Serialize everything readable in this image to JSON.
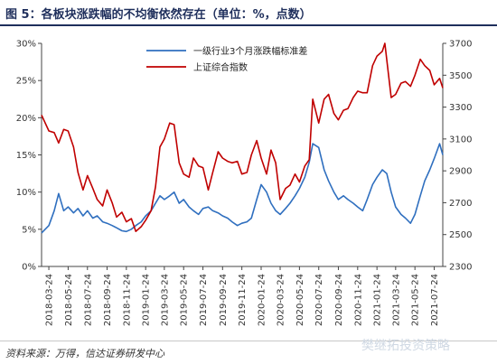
{
  "header": {
    "title": "图 5：各板块涨跌幅的不均衡依然存在（单位：%，点数）"
  },
  "footer": {
    "source": "资料来源：万得，信达证券研发中心",
    "watermark": "樊继拓投资策略"
  },
  "colors": {
    "series_blue": "#2f6fbf",
    "series_red": "#c00000",
    "title": "#1f2f5c"
  },
  "chart_data": {
    "type": "line",
    "title": "",
    "xlabel": "",
    "ylabel": "",
    "grid": false,
    "legend_position": "top-center",
    "x_ticks": [
      "2018-03-24",
      "2018-05-24",
      "2018-07-24",
      "2018-09-24",
      "2018-11-24",
      "2019-01-24",
      "2019-03-24",
      "2019-05-24",
      "2019-07-24",
      "2019-09-24",
      "2019-11-24",
      "2020-01-24",
      "2020-03-24",
      "2020-05-24",
      "2020-07-24",
      "2020-09-24",
      "2020-11-24",
      "2021-01-24",
      "2021-03-24",
      "2021-05-24",
      "2021-07-24"
    ],
    "x_range": [
      "2018-03-01",
      "2021-08-20"
    ],
    "y_left": {
      "ticks": [
        "0%",
        "5%",
        "10%",
        "15%",
        "20%",
        "25%",
        "30%"
      ],
      "range": [
        0,
        30
      ],
      "unit": "%"
    },
    "y_right": {
      "ticks": [
        "2300",
        "2500",
        "2700",
        "2900",
        "3100",
        "3300",
        "3500",
        "3700"
      ],
      "range": [
        2300,
        3700
      ]
    },
    "series": [
      {
        "name": "一级行业3个月涨跌幅标准差",
        "axis": "left",
        "color": "#2f6fbf",
        "points": [
          [
            "2018-03-01",
            4.5
          ],
          [
            "2018-03-24",
            5.5
          ],
          [
            "2018-04-10",
            7.5
          ],
          [
            "2018-04-24",
            9.8
          ],
          [
            "2018-05-10",
            7.5
          ],
          [
            "2018-05-24",
            8.0
          ],
          [
            "2018-06-10",
            7.2
          ],
          [
            "2018-06-24",
            7.8
          ],
          [
            "2018-07-10",
            6.8
          ],
          [
            "2018-07-24",
            7.5
          ],
          [
            "2018-08-10",
            6.5
          ],
          [
            "2018-08-24",
            6.8
          ],
          [
            "2018-09-10",
            6.0
          ],
          [
            "2018-09-24",
            5.8
          ],
          [
            "2018-10-10",
            5.5
          ],
          [
            "2018-10-24",
            5.2
          ],
          [
            "2018-11-10",
            4.8
          ],
          [
            "2018-11-24",
            4.7
          ],
          [
            "2018-12-10",
            5.0
          ],
          [
            "2018-12-24",
            5.5
          ],
          [
            "2019-01-10",
            6.0
          ],
          [
            "2019-01-24",
            6.8
          ],
          [
            "2019-02-10",
            7.5
          ],
          [
            "2019-02-24",
            8.5
          ],
          [
            "2019-03-10",
            9.5
          ],
          [
            "2019-03-24",
            9.0
          ],
          [
            "2019-04-10",
            9.5
          ],
          [
            "2019-04-24",
            10.0
          ],
          [
            "2019-05-10",
            8.5
          ],
          [
            "2019-05-24",
            9.0
          ],
          [
            "2019-06-10",
            8.0
          ],
          [
            "2019-06-24",
            7.5
          ],
          [
            "2019-07-10",
            7.0
          ],
          [
            "2019-07-24",
            7.8
          ],
          [
            "2019-08-10",
            8.0
          ],
          [
            "2019-08-24",
            7.5
          ],
          [
            "2019-09-10",
            7.2
          ],
          [
            "2019-09-24",
            6.8
          ],
          [
            "2019-10-10",
            6.5
          ],
          [
            "2019-10-24",
            6.0
          ],
          [
            "2019-11-10",
            5.5
          ],
          [
            "2019-11-24",
            5.8
          ],
          [
            "2019-12-10",
            6.0
          ],
          [
            "2019-12-24",
            6.5
          ],
          [
            "2020-01-10",
            9.0
          ],
          [
            "2020-01-24",
            11.0
          ],
          [
            "2020-02-10",
            10.0
          ],
          [
            "2020-02-24",
            8.5
          ],
          [
            "2020-03-10",
            7.5
          ],
          [
            "2020-03-24",
            7.0
          ],
          [
            "2020-04-10",
            7.8
          ],
          [
            "2020-04-24",
            8.5
          ],
          [
            "2020-05-10",
            9.5
          ],
          [
            "2020-05-24",
            10.5
          ],
          [
            "2020-06-10",
            12.0
          ],
          [
            "2020-06-24",
            14.0
          ],
          [
            "2020-07-05",
            16.5
          ],
          [
            "2020-07-24",
            16.0
          ],
          [
            "2020-08-10",
            13.0
          ],
          [
            "2020-08-24",
            11.5
          ],
          [
            "2020-09-10",
            10.0
          ],
          [
            "2020-09-24",
            9.0
          ],
          [
            "2020-10-10",
            9.5
          ],
          [
            "2020-10-24",
            9.0
          ],
          [
            "2020-11-10",
            8.5
          ],
          [
            "2020-11-24",
            8.0
          ],
          [
            "2020-12-10",
            7.5
          ],
          [
            "2020-12-24",
            9.0
          ],
          [
            "2021-01-10",
            11.0
          ],
          [
            "2021-01-24",
            12.0
          ],
          [
            "2021-02-10",
            13.0
          ],
          [
            "2021-02-24",
            12.5
          ],
          [
            "2021-03-10",
            10.0
          ],
          [
            "2021-03-24",
            8.0
          ],
          [
            "2021-04-10",
            7.0
          ],
          [
            "2021-04-24",
            6.5
          ],
          [
            "2021-05-10",
            5.8
          ],
          [
            "2021-05-24",
            7.0
          ],
          [
            "2021-06-10",
            9.5
          ],
          [
            "2021-06-24",
            11.5
          ],
          [
            "2021-07-10",
            13.0
          ],
          [
            "2021-07-24",
            14.5
          ],
          [
            "2021-08-10",
            16.5
          ],
          [
            "2021-08-20",
            15.0
          ]
        ]
      },
      {
        "name": "上证综合指数",
        "axis": "right",
        "color": "#c00000",
        "points": [
          [
            "2018-03-01",
            3250
          ],
          [
            "2018-03-24",
            3150
          ],
          [
            "2018-04-10",
            3140
          ],
          [
            "2018-04-24",
            3075
          ],
          [
            "2018-05-10",
            3160
          ],
          [
            "2018-05-24",
            3150
          ],
          [
            "2018-06-10",
            3050
          ],
          [
            "2018-06-24",
            2890
          ],
          [
            "2018-07-10",
            2780
          ],
          [
            "2018-07-24",
            2870
          ],
          [
            "2018-08-10",
            2790
          ],
          [
            "2018-08-24",
            2720
          ],
          [
            "2018-09-10",
            2680
          ],
          [
            "2018-09-24",
            2780
          ],
          [
            "2018-10-10",
            2700
          ],
          [
            "2018-10-24",
            2610
          ],
          [
            "2018-11-10",
            2640
          ],
          [
            "2018-11-24",
            2580
          ],
          [
            "2018-12-10",
            2600
          ],
          [
            "2018-12-24",
            2520
          ],
          [
            "2019-01-10",
            2550
          ],
          [
            "2019-01-24",
            2590
          ],
          [
            "2019-02-10",
            2650
          ],
          [
            "2019-02-24",
            2800
          ],
          [
            "2019-03-10",
            3050
          ],
          [
            "2019-03-24",
            3100
          ],
          [
            "2019-04-10",
            3200
          ],
          [
            "2019-04-24",
            3190
          ],
          [
            "2019-05-10",
            2950
          ],
          [
            "2019-05-24",
            2880
          ],
          [
            "2019-06-10",
            2860
          ],
          [
            "2019-06-24",
            2980
          ],
          [
            "2019-07-10",
            2930
          ],
          [
            "2019-07-24",
            2920
          ],
          [
            "2019-08-10",
            2780
          ],
          [
            "2019-08-24",
            2890
          ],
          [
            "2019-09-10",
            3020
          ],
          [
            "2019-09-24",
            2980
          ],
          [
            "2019-10-10",
            2960
          ],
          [
            "2019-10-24",
            2950
          ],
          [
            "2019-11-10",
            2960
          ],
          [
            "2019-11-24",
            2880
          ],
          [
            "2019-12-10",
            2890
          ],
          [
            "2019-12-24",
            3000
          ],
          [
            "2020-01-10",
            3090
          ],
          [
            "2020-01-24",
            2980
          ],
          [
            "2020-02-10",
            2880
          ],
          [
            "2020-02-24",
            3030
          ],
          [
            "2020-03-10",
            2950
          ],
          [
            "2020-03-24",
            2720
          ],
          [
            "2020-04-10",
            2790
          ],
          [
            "2020-04-24",
            2810
          ],
          [
            "2020-05-10",
            2880
          ],
          [
            "2020-05-24",
            2830
          ],
          [
            "2020-06-10",
            2930
          ],
          [
            "2020-06-24",
            2970
          ],
          [
            "2020-07-05",
            3350
          ],
          [
            "2020-07-24",
            3200
          ],
          [
            "2020-08-10",
            3350
          ],
          [
            "2020-08-24",
            3380
          ],
          [
            "2020-09-10",
            3260
          ],
          [
            "2020-09-24",
            3220
          ],
          [
            "2020-10-10",
            3280
          ],
          [
            "2020-10-24",
            3290
          ],
          [
            "2020-11-10",
            3360
          ],
          [
            "2020-11-24",
            3400
          ],
          [
            "2020-12-10",
            3390
          ],
          [
            "2020-12-24",
            3390
          ],
          [
            "2021-01-10",
            3560
          ],
          [
            "2021-01-24",
            3620
          ],
          [
            "2021-02-10",
            3650
          ],
          [
            "2021-02-18",
            3700
          ],
          [
            "2021-03-10",
            3360
          ],
          [
            "2021-03-24",
            3380
          ],
          [
            "2021-04-10",
            3450
          ],
          [
            "2021-04-24",
            3460
          ],
          [
            "2021-05-10",
            3430
          ],
          [
            "2021-05-24",
            3500
          ],
          [
            "2021-06-10",
            3600
          ],
          [
            "2021-06-24",
            3560
          ],
          [
            "2021-07-10",
            3530
          ],
          [
            "2021-07-24",
            3440
          ],
          [
            "2021-08-10",
            3480
          ],
          [
            "2021-08-20",
            3420
          ]
        ]
      }
    ]
  }
}
